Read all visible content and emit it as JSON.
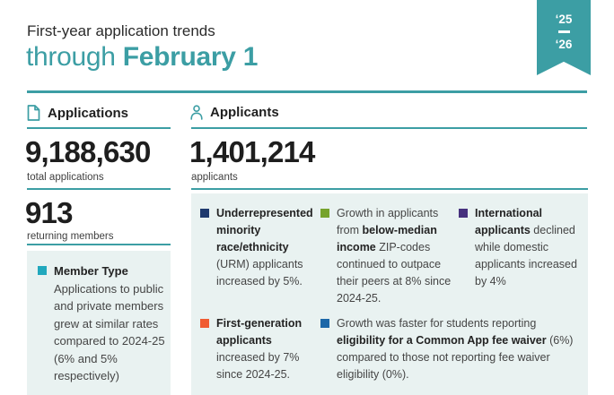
{
  "colors": {
    "accent_teal": "#3c9ea4",
    "box_background": "#e9f2f1",
    "bullet_navy": "#1f3a6e",
    "bullet_olive": "#76a32d",
    "bullet_purple": "#46317e",
    "bullet_orange": "#f05c33",
    "bullet_blue": "#1c67a8",
    "bullet_cyan": "#21a8bd"
  },
  "header": {
    "subtitle": "First-year application trends",
    "title_light": "through ",
    "title_bold": "February 1",
    "ribbon": {
      "top": "‘25",
      "bottom": "‘26"
    }
  },
  "applications": {
    "section_label": "Applications",
    "icon": "document-icon",
    "total_value": "9,188,630",
    "total_label": "total applications",
    "returning_value": "913",
    "returning_label": "returning members",
    "highlight": {
      "color": "#21a8bd",
      "segments": [
        {
          "text": "Member Type\n",
          "bold": true
        },
        {
          "text": "Applications to public and private members grew at similar rates compared to 2024-25 (6% and 5% respectively)",
          "bold": false
        }
      ]
    }
  },
  "applicants": {
    "section_label": "Applicants",
    "icon": "person-icon",
    "value": "1,401,214",
    "label": "applicants",
    "bullets": [
      {
        "color": "#1f3a6e",
        "segments": [
          {
            "text": "Underrepresented minority race/ethnicity",
            "bold": true
          },
          {
            "text": " (URM) applicants increased by 5%.",
            "bold": false
          }
        ]
      },
      {
        "color": "#76a32d",
        "segments": [
          {
            "text": "Growth in applicants from ",
            "bold": false
          },
          {
            "text": "below-median income",
            "bold": true
          },
          {
            "text": " ZIP-codes continued to outpace their peers at 8% since 2024-25.",
            "bold": false
          }
        ]
      },
      {
        "color": "#46317e",
        "segments": [
          {
            "text": "International applicants",
            "bold": true
          },
          {
            "text": " declined while domestic applicants increased by 4%",
            "bold": false
          }
        ]
      },
      {
        "color": "#f05c33",
        "segments": [
          {
            "text": "First-generation applicants",
            "bold": true
          },
          {
            "text": " increased by 7% since 2024-25.",
            "bold": false
          }
        ]
      },
      {
        "color": "#1c67a8",
        "segments": [
          {
            "text": "Growth was faster for students reporting ",
            "bold": false
          },
          {
            "text": "eligibility for a Common App fee waiver",
            "bold": true
          },
          {
            "text": " (6%) compared to those not reporting fee waiver eligibility (0%).",
            "bold": false
          }
        ]
      }
    ]
  }
}
